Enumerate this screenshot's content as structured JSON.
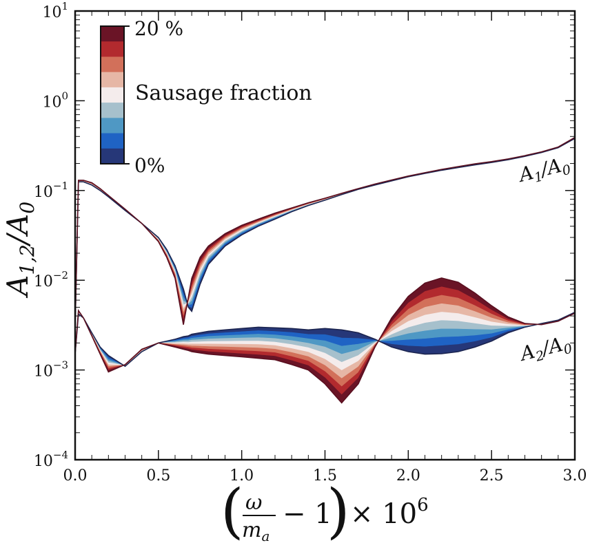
{
  "chart_data": {
    "type": "area",
    "title": "",
    "xlabel": "(ω/m_a − 1) × 10^6",
    "xlabel_parts": {
      "omega": "ω",
      "ma": "m",
      "ma_sub": "a",
      "minus": "− 1",
      "times": "× 10",
      "exp": "6"
    },
    "ylabel": "A1,2/A0",
    "ylabel_parts": {
      "a": "A",
      "sub": "1,2",
      "slash": "/A",
      "sub0": "0"
    },
    "xlim": [
      0.0,
      3.0
    ],
    "ylim": [
      0.0001,
      10
    ],
    "yscale": "log",
    "grid": false,
    "x_ticks": [
      "0.0",
      "0.5",
      "1.0",
      "1.5",
      "2.0",
      "2.5",
      "3.0"
    ],
    "y_ticks": [
      {
        "base": "10",
        "exp": "1"
      },
      {
        "base": "10",
        "exp": "0"
      },
      {
        "base": "10",
        "exp": "−1"
      },
      {
        "base": "10",
        "exp": "−2"
      },
      {
        "base": "10",
        "exp": "−3"
      },
      {
        "base": "10",
        "exp": "−4"
      }
    ],
    "colorbar": {
      "label": "Sausage fraction",
      "max_label": "20 %",
      "min_label": "0%",
      "placement": "upper-left",
      "colors": [
        "#6a1426",
        "#b22a2e",
        "#d2705a",
        "#e6b7a6",
        "#f4ecec",
        "#a6c0cc",
        "#4f98c4",
        "#1f63c4",
        "#263778"
      ]
    },
    "annotations": [
      {
        "text": "A1/A0",
        "base": "A",
        "sub": "1",
        "slash": "/A",
        "sub0": "0"
      },
      {
        "text": "A2/A0",
        "base": "A",
        "sub": "2",
        "slash": "/A",
        "sub0": "0"
      }
    ],
    "x": [
      0.0,
      0.02,
      0.05,
      0.1,
      0.15,
      0.2,
      0.3,
      0.4,
      0.5,
      0.55,
      0.6,
      0.65,
      0.68,
      0.7,
      0.75,
      0.8,
      0.9,
      1.0,
      1.1,
      1.2,
      1.3,
      1.4,
      1.5,
      1.6,
      1.7,
      1.8,
      1.9,
      2.0,
      2.1,
      2.2,
      2.3,
      2.4,
      2.5,
      2.6,
      2.7,
      2.8,
      2.9,
      3.0
    ],
    "series": [
      {
        "name": "A1/A0 (0%)",
        "values": [
          0.003,
          0.125,
          0.125,
          0.115,
          0.1,
          0.085,
          0.06,
          0.043,
          0.03,
          0.022,
          0.0145,
          0.008,
          0.005,
          0.0045,
          0.009,
          0.015,
          0.024,
          0.032,
          0.04,
          0.048,
          0.058,
          0.068,
          0.078,
          0.09,
          0.103,
          0.115,
          0.128,
          0.142,
          0.155,
          0.168,
          0.18,
          0.193,
          0.205,
          0.22,
          0.24,
          0.265,
          0.3,
          0.38
        ]
      },
      {
        "name": "A1/A0 (20%)",
        "values": [
          0.003,
          0.13,
          0.13,
          0.122,
          0.105,
          0.088,
          0.062,
          0.043,
          0.027,
          0.018,
          0.0105,
          0.0032,
          0.0065,
          0.0105,
          0.018,
          0.024,
          0.033,
          0.041,
          0.048,
          0.056,
          0.064,
          0.073,
          0.082,
          0.093,
          0.105,
          0.118,
          0.131,
          0.145,
          0.158,
          0.172,
          0.185,
          0.198,
          0.21,
          0.225,
          0.245,
          0.27,
          0.305,
          0.39
        ]
      },
      {
        "name": "A2/A0 (0%)",
        "values": [
          0.0015,
          0.0042,
          0.0038,
          0.0026,
          0.0018,
          0.00145,
          0.0011,
          0.0016,
          0.002,
          0.0021,
          0.0022,
          0.00235,
          0.0024,
          0.0025,
          0.0026,
          0.0027,
          0.0028,
          0.0029,
          0.003,
          0.00295,
          0.0029,
          0.0028,
          0.0029,
          0.0028,
          0.0026,
          0.0022,
          0.0018,
          0.0016,
          0.0015,
          0.00152,
          0.0016,
          0.0018,
          0.0021,
          0.0026,
          0.003,
          0.0033,
          0.0036,
          0.0044
        ]
      },
      {
        "name": "A2/A0 (20%)",
        "values": [
          0.0015,
          0.0046,
          0.0038,
          0.0024,
          0.0015,
          0.00095,
          0.00115,
          0.0017,
          0.002,
          0.0019,
          0.0018,
          0.0017,
          0.00165,
          0.0016,
          0.00155,
          0.0015,
          0.00145,
          0.0014,
          0.00135,
          0.0013,
          0.00115,
          0.001,
          0.0007,
          0.00043,
          0.0007,
          0.0018,
          0.0038,
          0.0066,
          0.0093,
          0.0106,
          0.0095,
          0.0072,
          0.0052,
          0.0039,
          0.0033,
          0.0032,
          0.0035,
          0.0043
        ]
      }
    ]
  }
}
